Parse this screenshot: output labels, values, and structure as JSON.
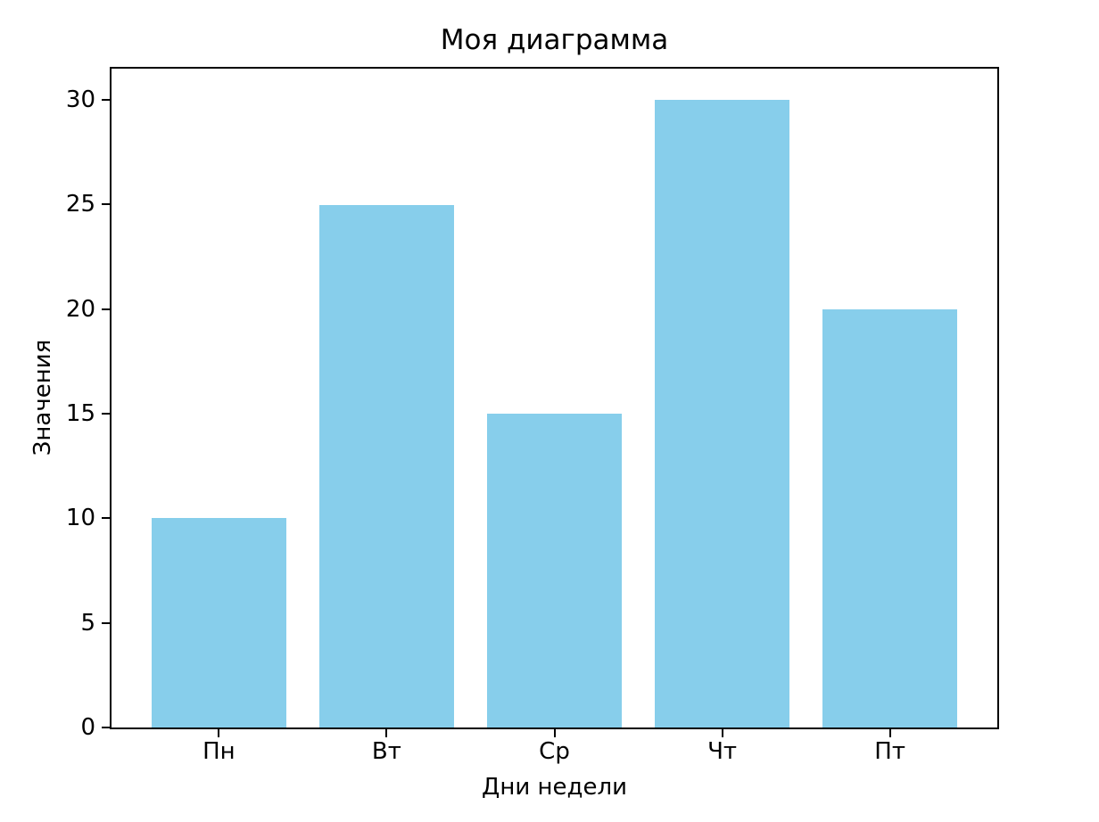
{
  "chart_data": {
    "type": "bar",
    "title": "Моя диаграмма",
    "xlabel": "Дни недели",
    "ylabel": "Значения",
    "categories": [
      "Пн",
      "Вт",
      "Ср",
      "Чт",
      "Пт"
    ],
    "values": [
      10,
      25,
      15,
      30,
      20
    ],
    "yticks": [
      0,
      5,
      10,
      15,
      20,
      25,
      30
    ],
    "ylim": [
      0,
      31.5
    ],
    "bar_color": "#87CEEB",
    "grid": false,
    "legend": "none",
    "background_color": "#ffffff",
    "axis_color": "#000000"
  }
}
